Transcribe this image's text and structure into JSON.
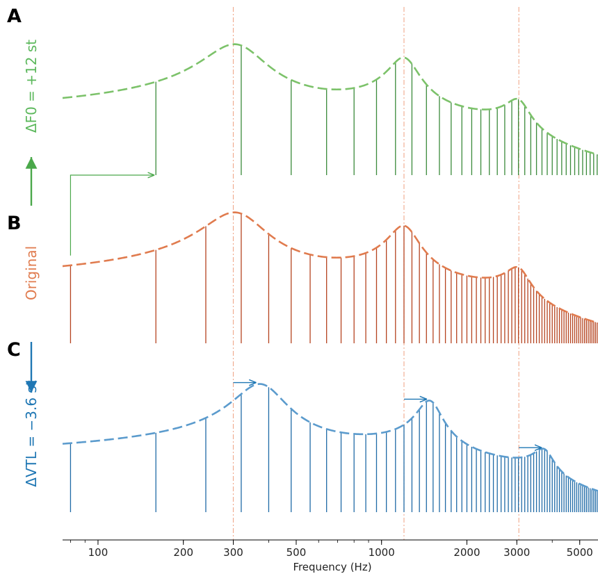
{
  "figure": {
    "xlabel": "Frequency (Hz)",
    "colors": {
      "green_harmonic": "#3a8a3a",
      "green_envelope": "#7cc26a",
      "orange_harmonic": "#b5431f",
      "orange_envelope": "#e07b4e",
      "blue_harmonic": "#1f6aa6",
      "blue_envelope": "#5b9bcd",
      "formant_guide": "#f0a88a",
      "arrow_green": "#4aa84a",
      "arrow_blue": "#1f77b4"
    }
  },
  "chart_data": [
    {
      "panel": "A",
      "side_label": "ΔF0 = +12 st",
      "type": "line",
      "x_scale": "log",
      "xlim": [
        75,
        5800
      ],
      "f0": 160,
      "formants": [
        300,
        1200,
        3050
      ],
      "envelope_dashed": true,
      "harmonics_hz": [
        160,
        320,
        480,
        640,
        800,
        960,
        1120,
        1280,
        1440,
        1600,
        1760,
        1920,
        2080,
        2240,
        2400,
        2560,
        2720,
        2880,
        3040,
        3200,
        3360,
        3520,
        3680,
        3840,
        4000,
        4160,
        4320,
        4480,
        4640,
        4800,
        4960,
        5120,
        5280,
        5440,
        5600,
        5760
      ]
    },
    {
      "panel": "B",
      "side_label": "Original",
      "type": "line",
      "x_scale": "log",
      "xlim": [
        75,
        5800
      ],
      "f0": 80,
      "formants": [
        300,
        1200,
        3050
      ],
      "envelope_dashed": true,
      "harmonics_hz": "80 × n, n = 1 … 72"
    },
    {
      "panel": "C",
      "side_label": "ΔVTL = −3.6 st",
      "type": "line",
      "x_scale": "log",
      "xlim": [
        75,
        5800
      ],
      "f0": 80,
      "formants": [
        370,
        1480,
        3760
      ],
      "original_formants": [
        300,
        1200,
        3050
      ],
      "envelope_dashed": true,
      "harmonics_hz": "80 × n, n = 1 … 72"
    }
  ],
  "x_axis": {
    "ticks": [
      {
        "value": 100,
        "label": "100"
      },
      {
        "value": 200,
        "label": "200"
      },
      {
        "value": 300,
        "label": "300"
      },
      {
        "value": 500,
        "label": "500"
      },
      {
        "value": 1000,
        "label": "1000"
      },
      {
        "value": 2000,
        "label": "2000"
      },
      {
        "value": 3000,
        "label": "3000"
      },
      {
        "value": 5000,
        "label": "5000"
      }
    ]
  }
}
